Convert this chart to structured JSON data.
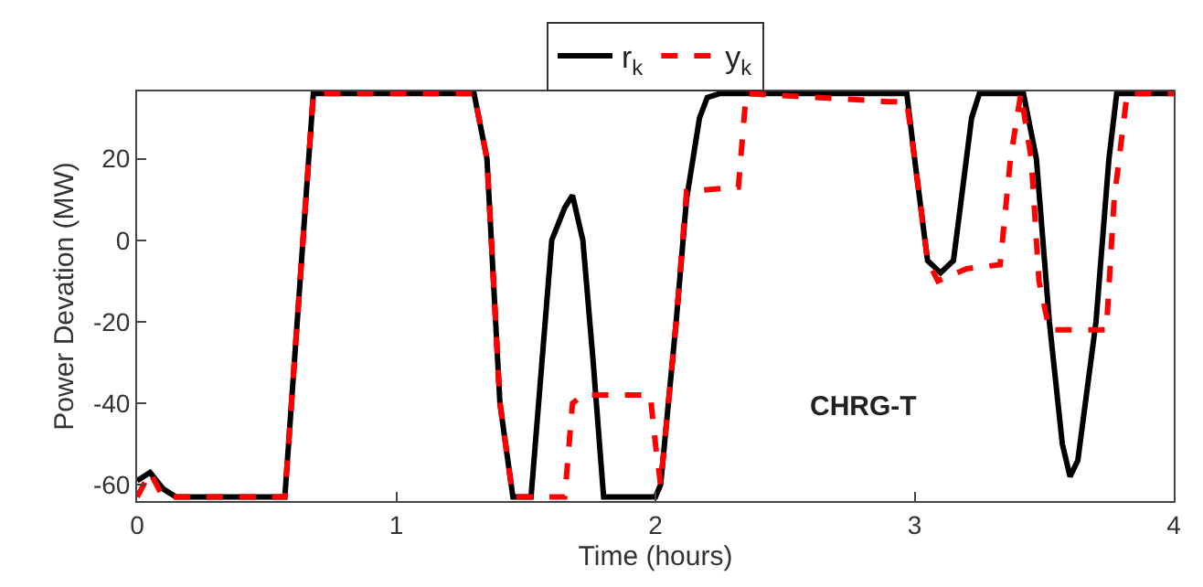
{
  "chart_data": {
    "type": "line",
    "xlabel": "Time (hours)",
    "ylabel": "Power Devation (MW)",
    "xlim": [
      0,
      4
    ],
    "xticks": [
      0,
      1,
      2,
      3,
      4
    ],
    "ylim": [
      -64,
      36.5
    ],
    "yticks": [
      -60,
      -40,
      -20,
      0,
      20
    ],
    "legend": "top",
    "marker": "none",
    "annotations": [
      "CHRG-T"
    ],
    "series": [
      {
        "name": "r$_{k}$",
        "color": "#000000",
        "line_style": "solid",
        "x": [
          0,
          0.05,
          0.1,
          0.15,
          0.57,
          0.68,
          1.3,
          1.35,
          1.4,
          1.45,
          1.52,
          1.6,
          1.65,
          1.68,
          1.72,
          1.76,
          1.8,
          2.0,
          2.02,
          2.08,
          2.12,
          2.17,
          2.2,
          2.25,
          2.97,
          3.0,
          3.05,
          3.1,
          3.15,
          3.18,
          3.22,
          3.25,
          3.42,
          3.47,
          3.52,
          3.57,
          3.6,
          3.63,
          3.7,
          3.75,
          3.78,
          4
        ],
        "values": [
          -59,
          -57,
          -61,
          -63,
          -63,
          36,
          36,
          20,
          -40,
          -63,
          -63,
          0,
          8,
          11,
          0,
          -30,
          -63,
          -63,
          -60,
          -20,
          10,
          30,
          35,
          36,
          36,
          20,
          -5,
          -8,
          -5,
          10,
          30,
          36,
          36,
          20,
          -20,
          -50,
          -58,
          -54,
          -20,
          20,
          36,
          36
        ]
      },
      {
        "name": "y$_{k}$",
        "color": "#ff0000",
        "line_style": "dashed",
        "x": [
          0,
          0.05,
          0.1,
          0.57,
          0.68,
          1.3,
          1.35,
          1.4,
          1.45,
          1.65,
          1.68,
          1.72,
          1.98,
          2.0,
          2.02,
          2.08,
          2.12,
          2.32,
          2.35,
          2.9,
          2.97,
          3.0,
          3.05,
          3.09,
          3.2,
          3.33,
          3.37,
          3.41,
          3.45,
          3.48,
          3.52,
          3.74,
          3.77,
          3.82,
          4
        ],
        "values": [
          -63,
          -57,
          -63,
          -63,
          36,
          36,
          20,
          -40,
          -63,
          -63,
          -40,
          -38,
          -38,
          -50,
          -60,
          -20,
          12,
          13,
          36,
          34,
          34,
          20,
          -5,
          -10,
          -7,
          -6,
          20,
          36,
          20,
          -10,
          -22,
          -22,
          10,
          36,
          36
        ]
      }
    ]
  }
}
